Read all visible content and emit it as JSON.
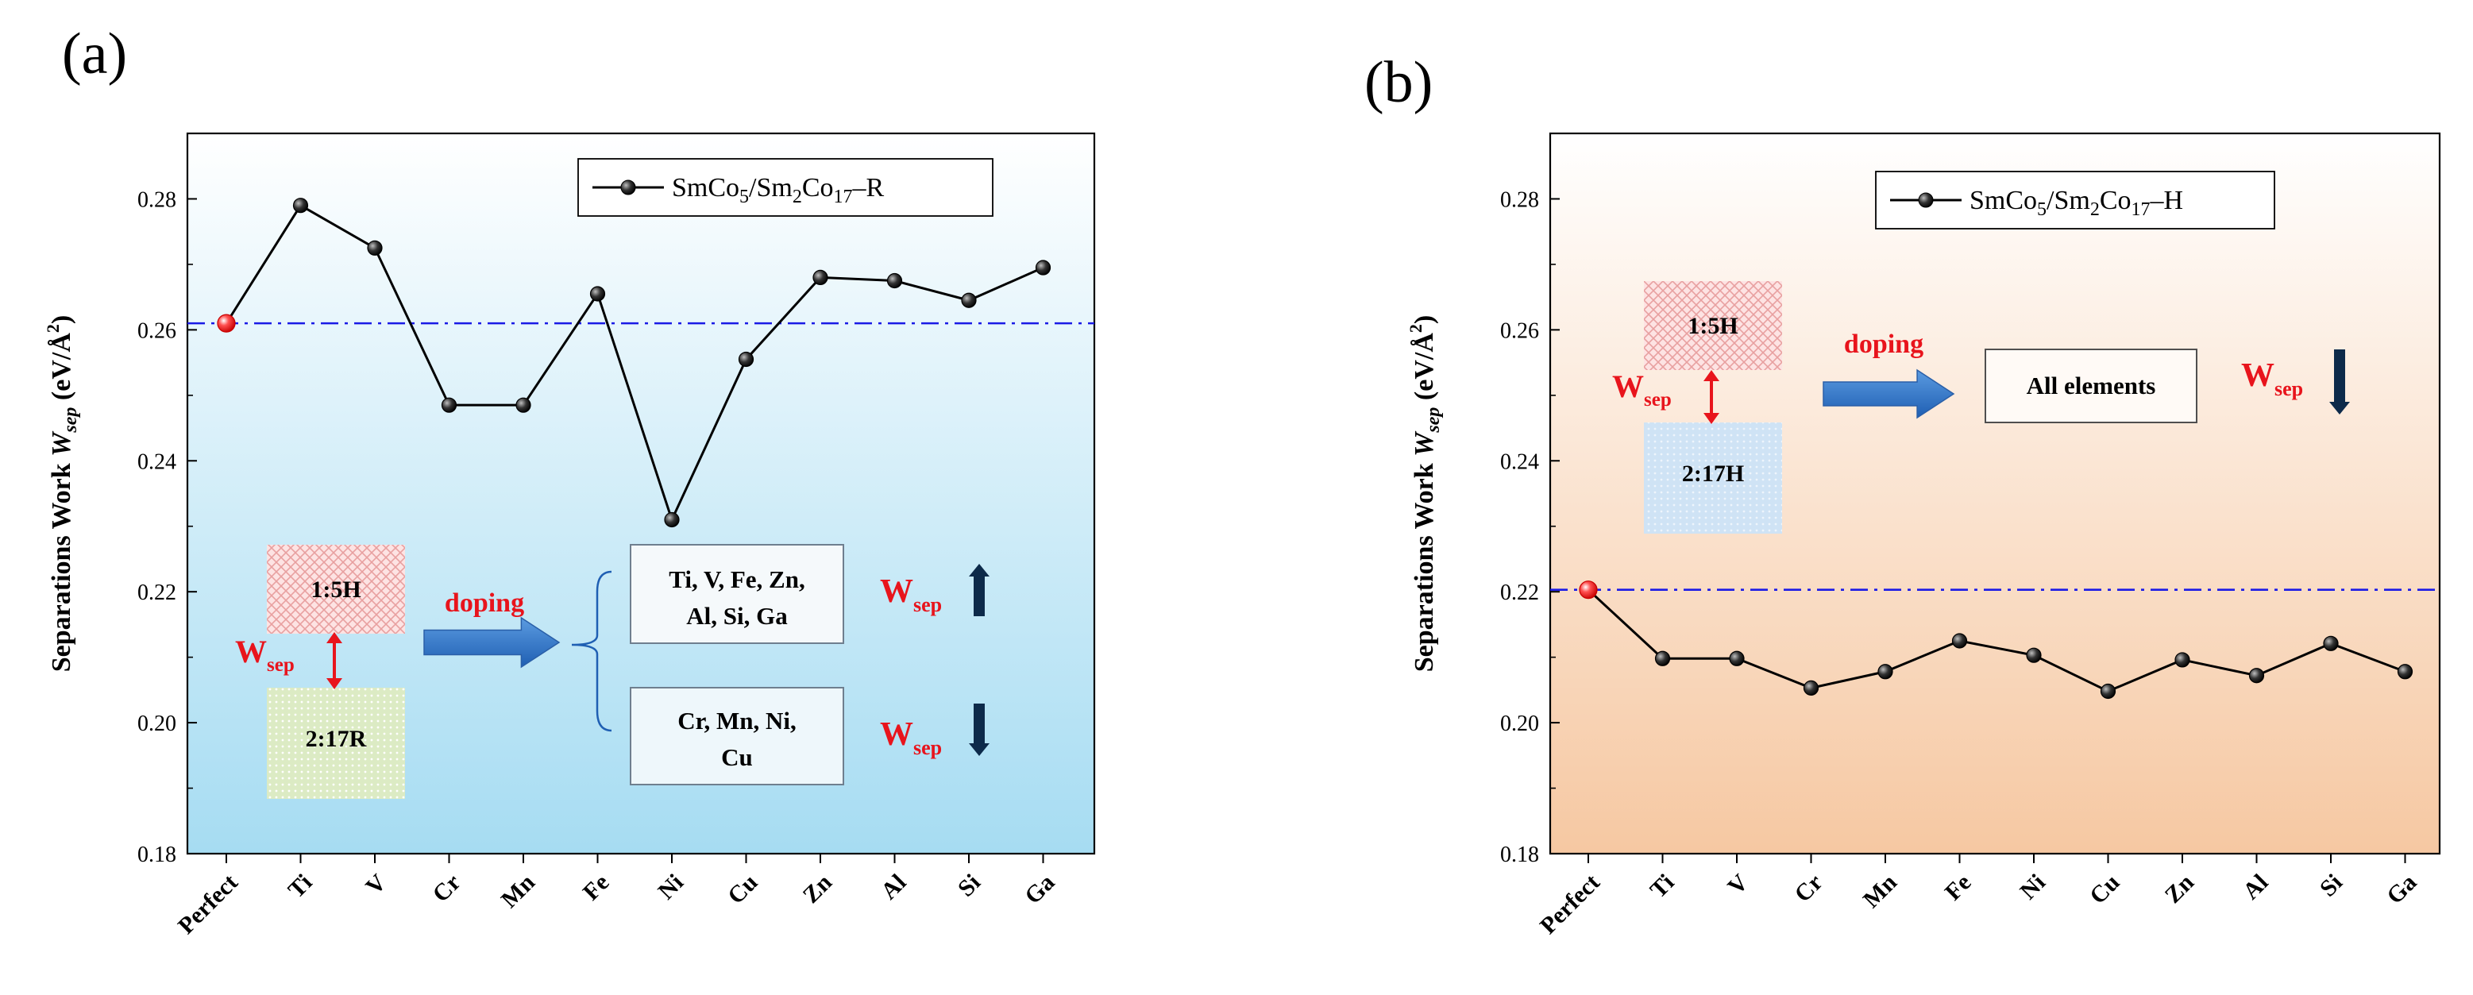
{
  "chart_data": [
    {
      "type": "line",
      "panel": "(a)",
      "ylabel": "Separations Work W_sep (eV/Å²)",
      "ylabel_parts": {
        "main": "Separations Work ",
        "w": "W",
        "sub": "sep",
        "unit_open": " (eV/",
        "unit_A": "Å",
        "unit_exp": "2",
        "unit_close": ")"
      },
      "ylim": [
        0.18,
        0.29
      ],
      "yticks": [
        "0.18",
        "0.20",
        "0.22",
        "0.24",
        "0.26",
        "0.28"
      ],
      "categories": [
        "Perfect",
        "Ti",
        "V",
        "Cr",
        "Mn",
        "Fe",
        "Ni",
        "Cu",
        "Zn",
        "Al",
        "Si",
        "Ga"
      ],
      "series": [
        {
          "name": "SmCo5/Sm2Co17–R",
          "values": [
            0.261,
            0.279,
            0.2725,
            0.2485,
            0.2485,
            0.2655,
            0.231,
            0.2555,
            0.268,
            0.2675,
            0.2645,
            0.2695
          ]
        }
      ],
      "reference_line": 0.261,
      "legend": {
        "pre": "SmCo",
        "s1": "5",
        "mid": "/Sm",
        "s2": "2",
        "mid2": "Co",
        "s3": "17",
        "post": "–R"
      },
      "annotations": {
        "box_top": "1:5H",
        "box_bottom": "2:17R",
        "w": "W",
        "sep": "sep",
        "doping": "doping",
        "up_group_line1": "Ti, V, Fe, Zn,",
        "up_group_line2": "Al, Si, Ga",
        "down_group_line1": "Cr, Mn, Ni,",
        "down_group_line2": "Cu"
      },
      "background": {
        "top": "#ffffff",
        "bottom": "#a6dcf2"
      }
    },
    {
      "type": "line",
      "panel": "(b)",
      "ylabel": "Separations Work W_sep (eV/Å²)",
      "ylabel_parts": {
        "main": "Separations Work ",
        "w": "W",
        "sub": "sep",
        "unit_open": " (eV/",
        "unit_A": "Å",
        "unit_exp": "2",
        "unit_close": ")"
      },
      "ylim": [
        0.18,
        0.29
      ],
      "yticks": [
        "0.18",
        "0.20",
        "0.22",
        "0.24",
        "0.26",
        "0.28"
      ],
      "categories": [
        "Perfect",
        "Ti",
        "V",
        "Cr",
        "Mn",
        "Fe",
        "Ni",
        "Cu",
        "Zn",
        "Al",
        "Si",
        "Ga"
      ],
      "series": [
        {
          "name": "SmCo5/Sm2Co17–H",
          "values": [
            0.2203,
            0.2098,
            0.2098,
            0.2053,
            0.2078,
            0.2125,
            0.2103,
            0.2048,
            0.2096,
            0.2072,
            0.2121,
            0.2078
          ]
        }
      ],
      "reference_line": 0.2203,
      "legend": {
        "pre": "SmCo",
        "s1": "5",
        "mid": "/Sm",
        "s2": "2",
        "mid2": "Co",
        "s3": "17",
        "post": "–H"
      },
      "annotations": {
        "box_top": "1:5H",
        "box_bottom": "2:17H",
        "w": "W",
        "sep": "sep",
        "doping": "doping",
        "all": "All elements"
      },
      "background": {
        "top": "#ffffff",
        "bottom": "#f6c8a2"
      }
    }
  ]
}
